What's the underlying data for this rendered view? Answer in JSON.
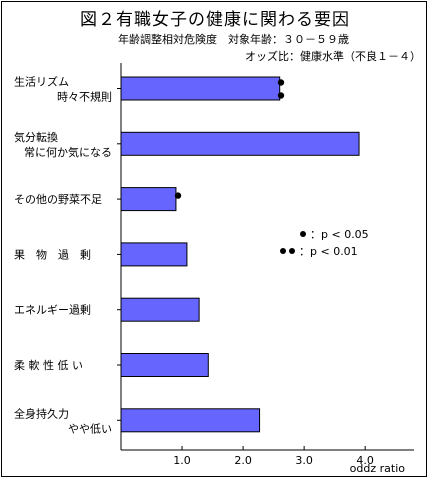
{
  "title": "図２有職女子の健康に関わる要因",
  "subtitle_line1": "年齢調整相対危険度　対象年齢：３０－５９歳",
  "subtitle_line2": "オッズ比：健康水準（不良１－４）",
  "legend_notes": [
    {
      "dots": "●",
      "text": "：p < 0.05"
    },
    {
      "dots": "●●",
      "text": "：p < 0.01"
    }
  ],
  "chart_data": {
    "type": "bar",
    "orientation": "horizontal",
    "title": "図２有職女子の健康に関わる要因",
    "xlabel": "oddz ratio",
    "xlim": [
      0,
      4.8
    ],
    "xticks": [
      1.0,
      2.0,
      3.0,
      4.0
    ],
    "xtick_labels": [
      "1.0",
      "2.0",
      "3.0",
      "4.0"
    ],
    "bar_color": "#6666ff",
    "categories": [
      {
        "lines": [
          "生活リズム",
          "時々不規則"
        ],
        "value": 2.6,
        "sig": "●●"
      },
      {
        "lines": [
          "気分転換",
          "常に何か気になる"
        ],
        "value": 3.9,
        "sig": ""
      },
      {
        "lines": [
          "その他の野菜不足"
        ],
        "value": 0.9,
        "sig": "●"
      },
      {
        "lines": [
          "果　物　過　剰"
        ],
        "value": 1.08,
        "sig": ""
      },
      {
        "lines": [
          "エネルギー過剰"
        ],
        "value": 1.28,
        "sig": ""
      },
      {
        "lines": [
          "柔 軟 性 低 い"
        ],
        "value": 1.43,
        "sig": ""
      },
      {
        "lines": [
          "全身持久力",
          "やや低い"
        ],
        "value": 2.27,
        "sig": ""
      }
    ]
  }
}
